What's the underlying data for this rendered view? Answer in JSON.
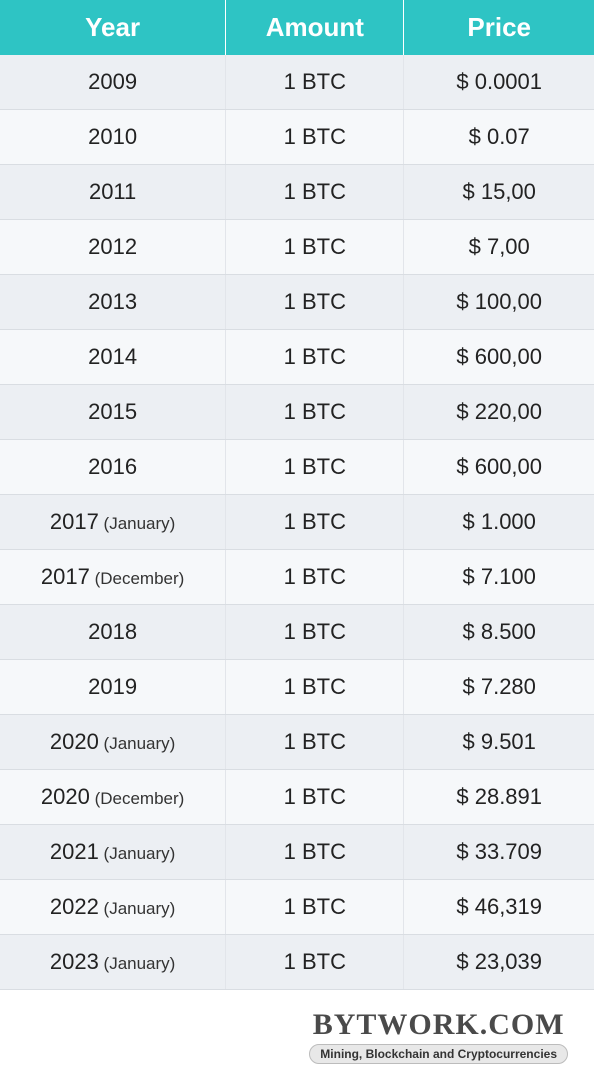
{
  "table": {
    "type": "table",
    "header_bg": "#2ec4c4",
    "header_fg": "#ffffff",
    "row_odd_bg": "#eceff3",
    "row_even_bg": "#f6f8fa",
    "border_color": "#d9dde2",
    "text_color": "#222222",
    "header_fontsize": 26,
    "cell_fontsize": 22,
    "sub_fontsize": 17,
    "columns": [
      {
        "key": "year",
        "label": "Year",
        "width": "38%"
      },
      {
        "key": "amount",
        "label": "Amount",
        "width": "30%"
      },
      {
        "key": "price",
        "label": "Price",
        "width": "32%"
      }
    ],
    "rows": [
      {
        "year": "2009",
        "year_sub": "",
        "amount": "1 BTC",
        "price": "$ 0.0001"
      },
      {
        "year": "2010",
        "year_sub": "",
        "amount": "1 BTC",
        "price": "$ 0.07"
      },
      {
        "year": "2011",
        "year_sub": "",
        "amount": "1 BTC",
        "price": "$ 15,00"
      },
      {
        "year": "2012",
        "year_sub": "",
        "amount": "1 BTC",
        "price": "$ 7,00"
      },
      {
        "year": "2013",
        "year_sub": "",
        "amount": "1 BTC",
        "price": "$ 100,00"
      },
      {
        "year": "2014",
        "year_sub": "",
        "amount": "1 BTC",
        "price": "$ 600,00"
      },
      {
        "year": "2015",
        "year_sub": "",
        "amount": "1 BTC",
        "price": "$ 220,00"
      },
      {
        "year": "2016",
        "year_sub": "",
        "amount": "1 BTC",
        "price": "$ 600,00"
      },
      {
        "year": "2017",
        "year_sub": "(January)",
        "amount": "1 BTC",
        "price": "$ 1.000"
      },
      {
        "year": "2017",
        "year_sub": "(December)",
        "amount": "1 BTC",
        "price": "$ 7.100"
      },
      {
        "year": "2018",
        "year_sub": "",
        "amount": "1 BTC",
        "price": "$ 8.500"
      },
      {
        "year": "2019",
        "year_sub": "",
        "amount": "1 BTC",
        "price": "$ 7.280"
      },
      {
        "year": "2020",
        "year_sub": "(January)",
        "amount": "1 BTC",
        "price": "$ 9.501"
      },
      {
        "year": "2020",
        "year_sub": "(December)",
        "amount": "1 BTC",
        "price": "$ 28.891"
      },
      {
        "year": "2021",
        "year_sub": "(January)",
        "amount": "1 BTC",
        "price": "$ 33.709"
      },
      {
        "year": "2022",
        "year_sub": "(January)",
        "amount": "1 BTC",
        "price": "$ 46,319"
      },
      {
        "year": "2023",
        "year_sub": "(January)",
        "amount": "1 BTC",
        "price": "$ 23,039"
      }
    ]
  },
  "footer": {
    "brand": "BYTWORK.COM",
    "tagline": "Mining, Blockchain and Cryptocurrencies",
    "brand_color": "#4a4a4a",
    "brand_fontsize": 30,
    "tagline_bg": "#e8e8e8",
    "tagline_border": "#bcbcbc",
    "tagline_fontsize": 12
  }
}
